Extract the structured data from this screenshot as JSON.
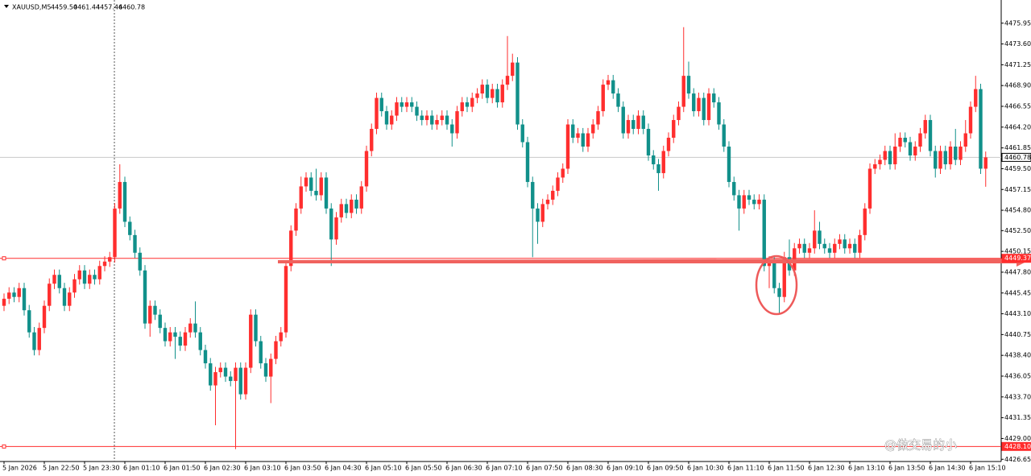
{
  "chart_data": {
    "type": "candlestick",
    "header": {
      "symbol": "XAUUSD,M5",
      "ohlc_labels": [
        "4459.50",
        "4461.44",
        "4457.46",
        "4460.78"
      ]
    },
    "up_color": "#ff2e2e",
    "down_color": "#11908a",
    "xlim": [
      -0.8,
      198.08
    ],
    "xticks": [
      {
        "value": 0,
        "label": "5 Jan 2026"
      },
      {
        "value": 8,
        "label": "5 Jan 22:50"
      },
      {
        "value": 16,
        "label": "5 Jan 23:30"
      },
      {
        "value": 24,
        "label": "6 Jan 01:10"
      },
      {
        "value": 32,
        "label": "6 Jan 01:50"
      },
      {
        "value": 40,
        "label": "6 Jan 02:30"
      },
      {
        "value": 48,
        "label": "6 Jan 03:10"
      },
      {
        "value": 56,
        "label": "6 Jan 03:50"
      },
      {
        "value": 64,
        "label": "6 Jan 04:30"
      },
      {
        "value": 72,
        "label": "6 Jan 05:10"
      },
      {
        "value": 80,
        "label": "6 Jan 05:50"
      },
      {
        "value": 88,
        "label": "6 Jan 06:30"
      },
      {
        "value": 96,
        "label": "6 Jan 07:10"
      },
      {
        "value": 104,
        "label": "6 Jan 07:50"
      },
      {
        "value": 112,
        "label": "6 Jan 08:30"
      },
      {
        "value": 120,
        "label": "6 Jan 09:10"
      },
      {
        "value": 128,
        "label": "6 Jan 09:50"
      },
      {
        "value": 136,
        "label": "6 Jan 10:30"
      },
      {
        "value": 144,
        "label": "6 Jan 11:10"
      },
      {
        "value": 152,
        "label": "6 Jan 11:50"
      },
      {
        "value": 160,
        "label": "6 Jan 12:30"
      },
      {
        "value": 168,
        "label": "6 Jan 13:10"
      },
      {
        "value": 176,
        "label": "6 Jan 13:50"
      },
      {
        "value": 184,
        "label": "6 Jan 14:30"
      },
      {
        "value": 192,
        "label": "6 Jan 15:10"
      }
    ],
    "ylim": [
      4426.4,
      4478.57
    ],
    "yticks": [
      4475.95,
      {
        "value": 4473.6,
        "label": "4473.60"
      },
      4471.25,
      {
        "value": 4468.9,
        "label": "4468.90"
      },
      4466.55,
      {
        "value": 4464.2,
        "label": "4464.20"
      },
      4461.85,
      {
        "value": 4459.5,
        "label": "4459.50"
      },
      4457.15,
      {
        "value": 4454.8,
        "label": "4454.80"
      },
      {
        "value": 4452.5,
        "label": "4452.50"
      },
      4450.15,
      {
        "value": 4447.8,
        "label": "4447.80"
      },
      4445.45,
      {
        "value": 4443.1,
        "label": "4443.10"
      },
      4440.75,
      {
        "value": 4438.4,
        "label": "4438.40"
      },
      4436.05,
      {
        "value": 4433.7,
        "label": "4433.70"
      },
      4431.35,
      {
        "value": 4429,
        "label": "4429.00"
      },
      4426.65
    ],
    "hlines": [
      {
        "value": 4449.37,
        "label": "4449.37",
        "color": "#ff2e2e"
      },
      {
        "value": 4460.78,
        "label": "4460.78",
        "color": "#c8c8c8"
      },
      {
        "value": 4428.1,
        "label": "4428.10",
        "color": "#ff2e2e"
      }
    ],
    "watermark": "@做交易的小",
    "candles": [
      [
        4444.0,
        4445.4,
        4443.4,
        4444.8
      ],
      [
        4444.8,
        4446.1,
        4444.2,
        4445.5
      ],
      [
        4445.5,
        4446.1,
        4444.4,
        4445.0
      ],
      [
        4445.0,
        4446.6,
        4444.4,
        4446.0
      ],
      [
        4446.0,
        4446.6,
        4442.9,
        4443.5
      ],
      [
        4443.5,
        4444.1,
        4440.4,
        4441.0
      ],
      [
        4441.0,
        4441.6,
        4438.4,
        4439.0
      ],
      [
        4439.0,
        4442.1,
        4438.4,
        4441.5
      ],
      [
        4441.5,
        4444.6,
        4440.9,
        4444.0
      ],
      [
        4444.0,
        4447.1,
        4443.4,
        4446.5
      ],
      [
        4446.5,
        4448.1,
        4445.9,
        4447.5
      ],
      [
        4447.5,
        4448.1,
        4445.4,
        4446.0
      ],
      [
        4446.0,
        4446.6,
        4443.4,
        4444.0
      ],
      [
        4444.0,
        4446.1,
        4443.4,
        4445.5
      ],
      [
        4445.5,
        4447.6,
        4444.9,
        4447.0
      ],
      [
        4447.0,
        4448.6,
        4446.4,
        4448.0
      ],
      [
        4448.0,
        4448.6,
        4445.9,
        4446.5
      ],
      [
        4446.5,
        4448.1,
        4445.9,
        4447.5
      ],
      [
        4447.5,
        4448.1,
        4446.4,
        4447.0
      ],
      [
        4447.0,
        4449.1,
        4446.4,
        4448.5
      ],
      [
        4448.5,
        4449.6,
        4447.9,
        4449.0
      ],
      [
        4449.0,
        4450.1,
        4448.4,
        4449.5
      ],
      [
        4449.5,
        4455.6,
        4448.9,
        4455.0
      ],
      [
        4455.0,
        4460.0,
        4454.4,
        4458.0
      ],
      [
        4458.0,
        4458.6,
        4452.9,
        4453.5
      ],
      [
        4453.5,
        4454.1,
        4451.4,
        4452.0
      ],
      [
        4452.0,
        4452.6,
        4449.4,
        4450.0
      ],
      [
        4450.0,
        4450.6,
        4447.4,
        4448.0
      ],
      [
        4448.0,
        4448.6,
        4441.4,
        4442.0
      ],
      [
        4442.0,
        4444.6,
        4440.5,
        4444.0
      ],
      [
        4444.0,
        4444.6,
        4442.4,
        4443.0
      ],
      [
        4443.0,
        4443.6,
        4440.9,
        4441.5
      ],
      [
        4441.5,
        4442.1,
        4439.4,
        4440.0
      ],
      [
        4440.0,
        4441.6,
        4439.4,
        4441.0
      ],
      [
        4441.0,
        4441.6,
        4438.0,
        4440.5
      ],
      [
        4440.5,
        4441.1,
        4438.9,
        4439.5
      ],
      [
        4439.5,
        4441.6,
        4438.9,
        4441.0
      ],
      [
        4441.0,
        4442.6,
        4440.4,
        4442.0
      ],
      [
        4442.0,
        4444.5,
        4440.4,
        4441.0
      ],
      [
        4441.0,
        4441.6,
        4438.4,
        4439.0
      ],
      [
        4439.0,
        4439.6,
        4436.9,
        4437.5
      ],
      [
        4437.5,
        4438.1,
        4434.4,
        4435.0
      ],
      [
        4435.0,
        4437.1,
        4430.5,
        4436.5
      ],
      [
        4436.5,
        4437.6,
        4435.9,
        4437.0
      ],
      [
        4437.0,
        4437.6,
        4435.4,
        4436.0
      ],
      [
        4436.0,
        4436.6,
        4434.9,
        4435.5
      ],
      [
        4435.5,
        4437.6,
        4427.8,
        4437.0
      ],
      [
        4437.0,
        4437.6,
        4433.4,
        4434.0
      ],
      [
        4434.0,
        4437.6,
        4433.4,
        4437.0
      ],
      [
        4437.0,
        4443.6,
        4436.4,
        4443.0
      ],
      [
        4443.0,
        4443.6,
        4439.4,
        4440.0
      ],
      [
        4440.0,
        4440.6,
        4436.9,
        4437.5
      ],
      [
        4437.5,
        4438.1,
        4435.4,
        4436.0
      ],
      [
        4436.0,
        4438.6,
        4433.0,
        4438.0
      ],
      [
        4438.0,
        4440.6,
        4437.4,
        4440.0
      ],
      [
        4440.0,
        4441.6,
        4439.4,
        4441.0
      ],
      [
        4441.0,
        4449.1,
        4440.4,
        4448.5
      ],
      [
        4448.5,
        4453.1,
        4447.9,
        4452.5
      ],
      [
        4452.5,
        4455.6,
        4451.9,
        4455.0
      ],
      [
        4455.0,
        4458.6,
        4454.4,
        4457.5
      ],
      [
        4457.5,
        4459.1,
        4456.9,
        4458.5
      ],
      [
        4458.5,
        4459.1,
        4456.4,
        4457.0
      ],
      [
        4457.0,
        4459.5,
        4455.9,
        4456.5
      ],
      [
        4456.5,
        4459.1,
        4455.9,
        4458.5
      ],
      [
        4458.5,
        4459.1,
        4454.4,
        4455.0
      ],
      [
        4455.0,
        4455.6,
        4448.5,
        4451.5
      ],
      [
        4451.5,
        4454.6,
        4450.9,
        4454.0
      ],
      [
        4454.0,
        4456.1,
        4453.4,
        4455.5
      ],
      [
        4455.5,
        4456.1,
        4453.9,
        4454.5
      ],
      [
        4454.5,
        4456.6,
        4453.9,
        4456.0
      ],
      [
        4456.0,
        4456.6,
        4454.4,
        4455.0
      ],
      [
        4455.0,
        4458.1,
        4454.4,
        4457.5
      ],
      [
        4457.5,
        4462.1,
        4456.9,
        4461.5
      ],
      [
        4461.5,
        4464.6,
        4460.9,
        4464.0
      ],
      [
        4464.0,
        4468.1,
        4463.4,
        4467.5
      ],
      [
        4467.5,
        4468.1,
        4465.4,
        4466.0
      ],
      [
        4466.0,
        4466.6,
        4463.9,
        4464.5
      ],
      [
        4464.5,
        4466.1,
        4463.9,
        4465.5
      ],
      [
        4465.5,
        4467.6,
        4464.9,
        4467.0
      ],
      [
        4467.0,
        4467.6,
        4465.9,
        4466.5
      ],
      [
        4466.5,
        4467.6,
        4465.9,
        4467.0
      ],
      [
        4467.0,
        4467.6,
        4465.9,
        4466.5
      ],
      [
        4466.5,
        4467.1,
        4464.9,
        4465.5
      ],
      [
        4465.5,
        4466.1,
        4464.4,
        4465.0
      ],
      [
        4465.0,
        4466.1,
        4464.4,
        4465.5
      ],
      [
        4465.5,
        4466.1,
        4463.9,
        4464.5
      ],
      [
        4464.5,
        4465.6,
        4463.9,
        4465.0
      ],
      [
        4465.0,
        4466.1,
        4464.4,
        4465.5
      ],
      [
        4465.5,
        4466.1,
        4463.9,
        4464.5
      ],
      [
        4464.5,
        4465.1,
        4462.0,
        4463.5
      ],
      [
        4463.5,
        4466.6,
        4462.9,
        4466.0
      ],
      [
        4466.0,
        4467.6,
        4465.4,
        4467.0
      ],
      [
        4467.0,
        4467.6,
        4465.9,
        4466.5
      ],
      [
        4466.5,
        4468.1,
        4465.9,
        4467.5
      ],
      [
        4467.5,
        4468.6,
        4466.9,
        4468.0
      ],
      [
        4468.0,
        4469.6,
        4467.4,
        4469.0
      ],
      [
        4469.0,
        4469.6,
        4466.9,
        4467.5
      ],
      [
        4467.5,
        4469.1,
        4466.9,
        4468.5
      ],
      [
        4468.5,
        4469.1,
        4466.4,
        4467.0
      ],
      [
        4467.0,
        4469.6,
        4466.4,
        4469.0
      ],
      [
        4469.0,
        4474.5,
        4468.4,
        4470.0
      ],
      [
        4470.0,
        4472.5,
        4469.4,
        4471.5
      ],
      [
        4471.5,
        4472.1,
        4463.9,
        4464.5
      ],
      [
        4464.5,
        4465.1,
        4461.9,
        4462.5
      ],
      [
        4462.5,
        4463.1,
        4457.4,
        4458.0
      ],
      [
        4458.0,
        4458.6,
        4449.5,
        4455.0
      ],
      [
        4455.0,
        4455.6,
        4451.0,
        4453.5
      ],
      [
        4453.5,
        4456.1,
        4452.9,
        4455.5
      ],
      [
        4455.5,
        4456.6,
        4454.9,
        4456.0
      ],
      [
        4456.0,
        4457.6,
        4455.4,
        4457.0
      ],
      [
        4457.0,
        4459.1,
        4456.4,
        4458.5
      ],
      [
        4458.5,
        4460.1,
        4457.9,
        4459.5
      ],
      [
        4459.5,
        4465.1,
        4458.9,
        4464.5
      ],
      [
        4464.5,
        4465.1,
        4462.4,
        4463.0
      ],
      [
        4463.0,
        4464.1,
        4462.4,
        4463.5
      ],
      [
        4463.5,
        4464.1,
        4461.4,
        4462.0
      ],
      [
        4462.0,
        4464.1,
        4461.4,
        4463.5
      ],
      [
        4463.5,
        4465.1,
        4462.9,
        4464.5
      ],
      [
        4464.5,
        4466.6,
        4463.9,
        4466.0
      ],
      [
        4466.0,
        4469.6,
        4465.4,
        4469.0
      ],
      [
        4469.0,
        4470.1,
        4468.4,
        4469.5
      ],
      [
        4469.5,
        4470.1,
        4467.4,
        4468.0
      ],
      [
        4468.0,
        4468.6,
        4465.9,
        4466.5
      ],
      [
        4466.5,
        4467.1,
        4462.9,
        4463.5
      ],
      [
        4463.5,
        4465.6,
        4462.9,
        4465.0
      ],
      [
        4465.0,
        4465.6,
        4463.4,
        4464.0
      ],
      [
        4464.0,
        4466.1,
        4463.4,
        4465.5
      ],
      [
        4465.5,
        4466.1,
        4463.4,
        4464.0
      ],
      [
        4464.0,
        4464.6,
        4460.4,
        4461.0
      ],
      [
        4461.0,
        4461.6,
        4459.4,
        4460.0
      ],
      [
        4460.0,
        4460.6,
        4457.0,
        4459.0
      ],
      [
        4459.0,
        4462.1,
        4458.4,
        4461.5
      ],
      [
        4461.5,
        4463.6,
        4460.9,
        4463.0
      ],
      [
        4463.0,
        4465.6,
        4462.4,
        4465.0
      ],
      [
        4465.0,
        4467.1,
        4464.4,
        4466.5
      ],
      [
        4466.5,
        4475.5,
        4465.9,
        4470.0
      ],
      [
        4470.0,
        4471.6,
        4467.4,
        4468.0
      ],
      [
        4468.0,
        4468.6,
        4465.4,
        4466.0
      ],
      [
        4466.0,
        4468.1,
        4465.4,
        4467.5
      ],
      [
        4467.5,
        4468.1,
        4464.4,
        4465.0
      ],
      [
        4465.0,
        4468.6,
        4464.4,
        4468.0
      ],
      [
        4468.0,
        4468.6,
        4466.4,
        4467.0
      ],
      [
        4467.0,
        4467.6,
        4463.9,
        4464.5
      ],
      [
        4464.5,
        4465.1,
        4461.4,
        4462.0
      ],
      [
        4462.0,
        4462.6,
        4457.4,
        4458.0
      ],
      [
        4458.0,
        4458.6,
        4455.9,
        4456.5
      ],
      [
        4456.5,
        4457.1,
        4452.5,
        4455.0
      ],
      [
        4455.0,
        4457.1,
        4454.4,
        4456.5
      ],
      [
        4456.5,
        4457.1,
        4455.4,
        4456.0
      ],
      [
        4456.0,
        4456.6,
        4454.9,
        4455.5
      ],
      [
        4455.5,
        4456.6,
        4454.9,
        4456.0
      ],
      [
        4456.0,
        4456.6,
        4447.9,
        4448.5
      ],
      [
        4448.5,
        4449.6,
        4446.0,
        4449.0
      ],
      [
        4449.0,
        4449.6,
        4445.4,
        4446.0
      ],
      [
        4446.0,
        4446.6,
        4443.0,
        4445.0
      ],
      [
        4445.0,
        4450.1,
        4444.4,
        4449.5
      ],
      [
        4449.5,
        4451.5,
        4447.4,
        4448.0
      ],
      [
        4448.0,
        4451.1,
        4447.4,
        4450.5
      ],
      [
        4450.5,
        4451.6,
        4449.9,
        4451.0
      ],
      [
        4451.0,
        4451.6,
        4449.4,
        4450.0
      ],
      [
        4450.0,
        4451.1,
        4449.4,
        4450.5
      ],
      [
        4450.5,
        4454.8,
        4449.9,
        4452.5
      ],
      [
        4452.5,
        4453.5,
        4450.4,
        4451.0
      ],
      [
        4451.0,
        4451.6,
        4449.9,
        4450.5
      ],
      [
        4450.5,
        4451.1,
        4449.4,
        4450.0
      ],
      [
        4450.0,
        4451.6,
        4449.4,
        4451.0
      ],
      [
        4451.0,
        4452.1,
        4450.4,
        4451.5
      ],
      [
        4451.5,
        4452.1,
        4449.9,
        4450.5
      ],
      [
        4450.5,
        4451.6,
        4449.9,
        4451.0
      ],
      [
        4451.0,
        4451.6,
        4449.4,
        4450.0
      ],
      [
        4450.0,
        4452.6,
        4449.4,
        4452.0
      ],
      [
        4452.0,
        4455.6,
        4451.4,
        4455.0
      ],
      [
        4455.0,
        4460.1,
        4454.4,
        4459.5
      ],
      [
        4459.5,
        4460.6,
        4458.9,
        4460.0
      ],
      [
        4460.0,
        4461.1,
        4459.4,
        4460.5
      ],
      [
        4460.5,
        4462.1,
        4459.9,
        4461.5
      ],
      [
        4461.5,
        4462.1,
        4459.4,
        4460.0
      ],
      [
        4460.0,
        4463.5,
        4459.4,
        4462.0
      ],
      [
        4462.0,
        4463.6,
        4461.4,
        4463.0
      ],
      [
        4463.0,
        4463.6,
        4461.9,
        4462.5
      ],
      [
        4462.5,
        4463.1,
        4460.4,
        4461.0
      ],
      [
        4461.0,
        4462.6,
        4460.4,
        4462.0
      ],
      [
        4462.0,
        4464.1,
        4461.4,
        4463.5
      ],
      [
        4463.5,
        4465.6,
        4462.9,
        4465.0
      ],
      [
        4465.0,
        4465.6,
        4460.9,
        4461.5
      ],
      [
        4461.5,
        4462.1,
        4458.5,
        4459.5
      ],
      [
        4459.5,
        4462.1,
        4458.9,
        4461.5
      ],
      [
        4461.5,
        4462.1,
        4459.4,
        4460.0
      ],
      [
        4460.0,
        4462.6,
        4459.4,
        4462.0
      ],
      [
        4462.0,
        4464.0,
        4459.9,
        4460.5
      ],
      [
        4460.5,
        4462.6,
        4459.9,
        4462.0
      ],
      [
        4462.0,
        4465.0,
        4461.4,
        4463.5
      ],
      [
        4463.5,
        4467.1,
        4462.9,
        4466.5
      ],
      [
        4466.5,
        4470.0,
        4465.9,
        4468.5
      ],
      [
        4468.5,
        4469.1,
        4458.9,
        4459.5
      ],
      [
        4459.5,
        4461.44,
        4457.46,
        4460.78
      ]
    ]
  }
}
